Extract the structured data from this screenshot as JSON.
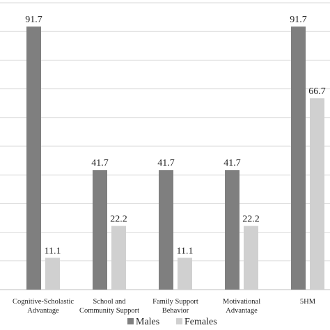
{
  "chart_data": {
    "type": "bar",
    "categories": [
      [
        "Cognitive-Scholastic",
        "Advantage"
      ],
      [
        "School and",
        "Community Support"
      ],
      [
        "Family Support",
        "Behavior"
      ],
      [
        "Motivational",
        "Advantage"
      ],
      [
        "5HM"
      ]
    ],
    "series": [
      {
        "name": "Males",
        "color": "#7f7f7f",
        "values": [
          91.7,
          41.7,
          41.7,
          41.7,
          91.7
        ]
      },
      {
        "name": "Females",
        "color": "#d0d0d0",
        "values": [
          11.1,
          22.2,
          11.1,
          22.2,
          66.7
        ]
      }
    ],
    "value_labels": [
      [
        "91.7",
        "41.7",
        "41.7",
        "41.7",
        "91.7"
      ],
      [
        "11.1",
        "22.2",
        "11.1",
        "22.2",
        "66.7"
      ]
    ],
    "ylim": [
      0,
      100
    ],
    "grid": true,
    "legend": "bottom"
  }
}
